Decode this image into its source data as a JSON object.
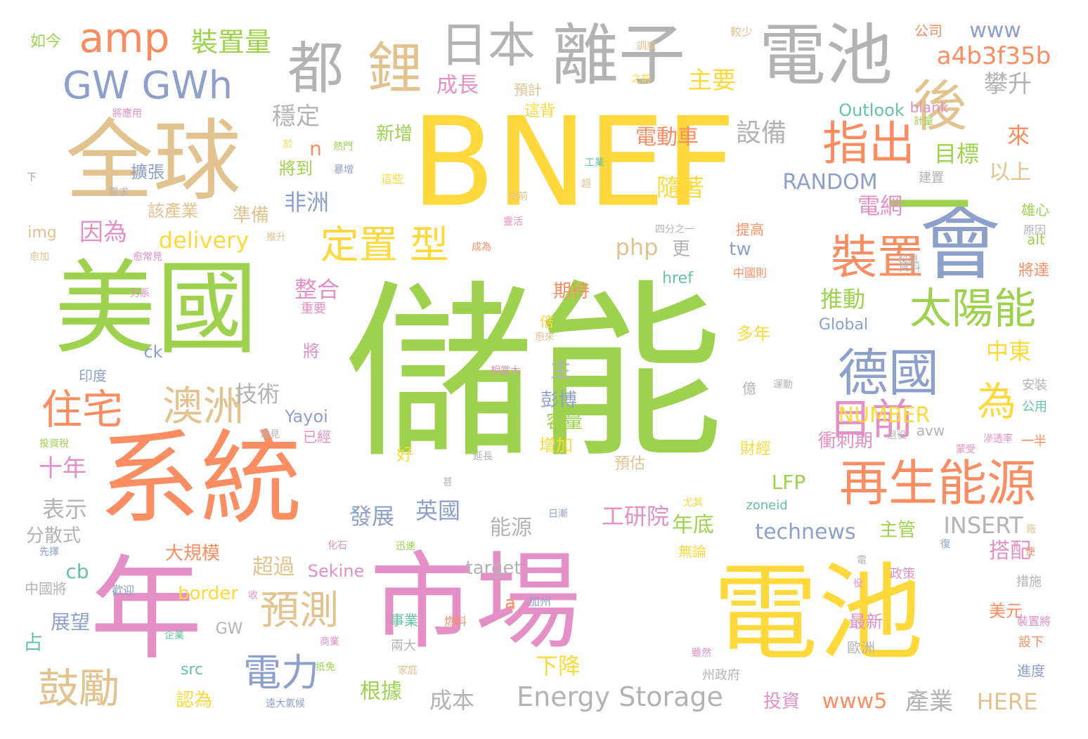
{
  "words": [
    {
      "t": "儲能",
      "c": "#9ED24E"
    },
    {
      "t": "BNEF",
      "c": "#FFD83B"
    },
    {
      "t": "市場",
      "c": "#E48FC5"
    },
    {
      "t": "電池",
      "c": "#FFD83B"
    },
    {
      "t": "系統",
      "c": "#FB8D62"
    },
    {
      "t": "年",
      "c": "#E48FC5"
    },
    {
      "t": "美國",
      "c": "#9ED24E"
    },
    {
      "t": "全球",
      "c": "#E2C28F"
    },
    {
      "t": "會",
      "c": "#8DA0CB"
    },
    {
      "t": "離子",
      "c": "#B3B3B3"
    },
    {
      "t": "電池",
      "c": "#B3B3B3"
    },
    {
      "t": "日本",
      "c": "#B3B3B3"
    },
    {
      "t": "都",
      "c": "#B3B3B3"
    },
    {
      "t": "amp",
      "c": "#FB8D62"
    },
    {
      "t": "GW GWh",
      "c": "#8DA0CB"
    },
    {
      "t": "鋰",
      "c": "#E2C28F"
    },
    {
      "t": "後",
      "c": "#E2C28F"
    },
    {
      "t": "一",
      "c": "#9ED24E"
    },
    {
      "t": "指出",
      "c": "#FB8D62"
    },
    {
      "t": "裝置",
      "c": "#FB8D62"
    },
    {
      "t": "再生能源",
      "c": "#FB8D62"
    },
    {
      "t": "德國",
      "c": "#8DA0CB"
    },
    {
      "t": "太陽能",
      "c": "#9ED24E"
    },
    {
      "t": "為",
      "c": "#FFD83B"
    },
    {
      "t": "目前",
      "c": "#E48FC5"
    },
    {
      "t": "定置 型",
      "c": "#FFD83B"
    },
    {
      "t": "澳洲",
      "c": "#E2C28F"
    },
    {
      "t": "住宅",
      "c": "#FB8D62"
    },
    {
      "t": "鼓勵",
      "c": "#E2C28F"
    },
    {
      "t": "預測",
      "c": "#E2C28F"
    },
    {
      "t": "電力",
      "c": "#8DA0CB"
    },
    {
      "t": "裝置量",
      "c": "#9ED24E"
    },
    {
      "t": "a4b3f35b",
      "c": "#FB8D62"
    },
    {
      "t": "www",
      "c": "#8DA0CB"
    },
    {
      "t": "主要",
      "c": "#FFD83B"
    },
    {
      "t": "攀升",
      "c": "#B3B3B3"
    },
    {
      "t": "穩定",
      "c": "#B3B3B3"
    },
    {
      "t": "成長",
      "c": "#E48FC5"
    },
    {
      "t": "新增",
      "c": "#9ED24E"
    },
    {
      "t": "電動車",
      "c": "#FB8D62"
    },
    {
      "t": "設備",
      "c": "#B3B3B3"
    },
    {
      "t": "目標",
      "c": "#9ED24E"
    },
    {
      "t": "來",
      "c": "#FB8D62"
    },
    {
      "t": "以上",
      "c": "#E2C28F"
    },
    {
      "t": "Outlook",
      "c": "#66C2A5"
    },
    {
      "t": "RANDOM",
      "c": "#8DA0CB"
    },
    {
      "t": "隨著",
      "c": "#FFD83B"
    },
    {
      "t": "電網",
      "c": "#E48FC5"
    },
    {
      "t": "非洲",
      "c": "#8DA0CB"
    },
    {
      "t": "擴張",
      "c": "#8DA0CB"
    },
    {
      "t": "將到",
      "c": "#9ED24E"
    },
    {
      "t": "n",
      "c": "#FB8D62"
    },
    {
      "t": "delivery",
      "c": "#FFD83B"
    },
    {
      "t": "php",
      "c": "#E2C28F"
    },
    {
      "t": "更",
      "c": "#B3B3B3"
    },
    {
      "t": "tw",
      "c": "#8DA0CB"
    },
    {
      "t": "整合",
      "c": "#E48FC5"
    },
    {
      "t": "推動",
      "c": "#9ED24E"
    },
    {
      "t": "中東",
      "c": "#FFD83B"
    },
    {
      "t": "期待",
      "c": "#FB8D62"
    },
    {
      "t": "因為",
      "c": "#E48FC5"
    },
    {
      "t": "準備",
      "c": "#E2C28F"
    },
    {
      "t": "該產業",
      "c": "#E2C28F"
    },
    {
      "t": "技術",
      "c": "#B3B3B3"
    },
    {
      "t": "主",
      "c": "#B3B3B3"
    },
    {
      "t": "彭博",
      "c": "#8DA0CB"
    },
    {
      "t": "容量",
      "c": "#9ED24E"
    },
    {
      "t": "NUMBER",
      "c": "#FFD83B"
    },
    {
      "t": "衝刺期",
      "c": "#E48FC5"
    },
    {
      "t": "Yayoi",
      "c": "#8DA0CB"
    },
    {
      "t": "十年",
      "c": "#E48FC5"
    },
    {
      "t": "表示",
      "c": "#B3B3B3"
    },
    {
      "t": "分散式",
      "c": "#B3B3B3"
    },
    {
      "t": "LFP",
      "c": "#9ED24E"
    },
    {
      "t": "發展",
      "c": "#8DA0CB"
    },
    {
      "t": "英國",
      "c": "#8DA0CB"
    },
    {
      "t": "能源",
      "c": "#B3B3B3"
    },
    {
      "t": "工研院",
      "c": "#E48FC5"
    },
    {
      "t": "年底",
      "c": "#9ED24E"
    },
    {
      "t": "technews",
      "c": "#8DA0CB"
    },
    {
      "t": "INSERT",
      "c": "#B3B3B3"
    },
    {
      "t": "主管",
      "c": "#9ED24E"
    },
    {
      "t": "搭配",
      "c": "#E48FC5"
    },
    {
      "t": "大規模",
      "c": "#FB8D62"
    },
    {
      "t": "超過",
      "c": "#E2C28F"
    },
    {
      "t": "Sekine",
      "c": "#E48FC5"
    },
    {
      "t": "cb",
      "c": "#66C2A5"
    },
    {
      "t": "border",
      "c": "#FFD83B"
    },
    {
      "t": "target",
      "c": "#B3B3B3"
    },
    {
      "t": "a",
      "c": "#FB8D62"
    },
    {
      "t": "最新",
      "c": "#E48FC5"
    },
    {
      "t": "美元",
      "c": "#FB8D62"
    },
    {
      "t": "展望",
      "c": "#8DA0CB"
    },
    {
      "t": "占",
      "c": "#66C2A5"
    },
    {
      "t": "下降",
      "c": "#FFD83B"
    },
    {
      "t": "根據",
      "c": "#9ED24E"
    },
    {
      "t": "成本",
      "c": "#B3B3B3"
    },
    {
      "t": "Energy Storage",
      "c": "#B3B3B3"
    },
    {
      "t": "www5",
      "c": "#FB8D62"
    },
    {
      "t": "產業",
      "c": "#B3B3B3"
    },
    {
      "t": "HERE",
      "c": "#E2C28F"
    },
    {
      "t": "認為",
      "c": "#FFD83B"
    },
    {
      "t": "投資",
      "c": "#E48FC5"
    },
    {
      "t": "src",
      "c": "#66C2A5"
    },
    {
      "t": "GW",
      "c": "#B3B3B3"
    },
    {
      "t": "如今",
      "c": "#9ED24E"
    },
    {
      "t": "公司",
      "c": "#FB8D62"
    },
    {
      "t": "較少",
      "c": "#E2C28F"
    },
    {
      "t": "調度",
      "c": "#E2C28F"
    },
    {
      "t": "將應用",
      "c": "#E48FC5"
    },
    {
      "t": "熱門",
      "c": "#9ED24E"
    },
    {
      "t": "於",
      "c": "#FFD83B"
    },
    {
      "t": "下",
      "c": "#8DA0CB"
    },
    {
      "t": "需求",
      "c": "#B3B3B3"
    },
    {
      "t": "暴增",
      "c": "#8DA0CB"
    },
    {
      "t": "這些",
      "c": "#FFD83B"
    },
    {
      "t": "img",
      "c": "#E2C28F"
    },
    {
      "t": "推升",
      "c": "#E2C28F"
    },
    {
      "t": "愈加",
      "c": "#E2C28F"
    },
    {
      "t": "愈常見",
      "c": "#E48FC5"
    },
    {
      "t": "力系",
      "c": "#E48FC5"
    },
    {
      "t": "重要",
      "c": "#E48FC5"
    },
    {
      "t": "將",
      "c": "#E48FC5"
    },
    {
      "t": "倍",
      "c": "#FFD83B"
    },
    {
      "t": "ck",
      "c": "#8DA0CB"
    },
    {
      "t": "印度",
      "c": "#8DA0CB"
    },
    {
      "t": "常見",
      "c": "#B3B3B3"
    },
    {
      "t": "已經",
      "c": "#E48FC5"
    },
    {
      "t": "好",
      "c": "#FFD83B"
    },
    {
      "t": "增加",
      "c": "#FFD83B"
    },
    {
      "t": "投資稅",
      "c": "#9ED24E"
    },
    {
      "t": "預計",
      "c": "#E2C28F"
    },
    {
      "t": "這背",
      "c": "#FFD83B"
    },
    {
      "t": "之前",
      "c": "#FFD83B"
    },
    {
      "t": "blank",
      "c": "#E48FC5"
    },
    {
      "t": "計量",
      "c": "#9ED24E"
    },
    {
      "t": "工業",
      "c": "#66C2A5"
    },
    {
      "t": "超",
      "c": "#E2C28F"
    },
    {
      "t": "建置",
      "c": "#B3B3B3"
    },
    {
      "t": "雄心",
      "c": "#9ED24E"
    },
    {
      "t": "原因",
      "c": "#B3B3B3"
    },
    {
      "t": "提前",
      "c": "#E2C28F"
    },
    {
      "t": "靈活",
      "c": "#E48FC5"
    },
    {
      "t": "四分之一",
      "c": "#B3B3B3"
    },
    {
      "t": "提高",
      "c": "#FB8D62"
    },
    {
      "t": "alt",
      "c": "#9ED24E"
    },
    {
      "t": "成為",
      "c": "#FB8D62"
    },
    {
      "t": "料想",
      "c": "#B3B3B3"
    },
    {
      "t": "資料",
      "c": "#B3B3B3"
    },
    {
      "t": "中國則",
      "c": "#FB8D62"
    },
    {
      "t": "href",
      "c": "#66C2A5"
    },
    {
      "t": "多年",
      "c": "#FFD83B"
    },
    {
      "t": "將達",
      "c": "#FB8D62"
    },
    {
      "t": "Global",
      "c": "#8DA0CB"
    },
    {
      "t": "億",
      "c": "#B3B3B3"
    },
    {
      "t": "愈來",
      "c": "#E2C28F"
    },
    {
      "t": "相當大",
      "c": "#E48FC5"
    },
    {
      "t": "運動",
      "c": "#B3B3B3"
    },
    {
      "t": "安裝",
      "c": "#B3B3B3"
    },
    {
      "t": "公用",
      "c": "#66C2A5"
    },
    {
      "t": "avw",
      "c": "#B3B3B3"
    },
    {
      "t": "一半",
      "c": "#FB8D62"
    },
    {
      "t": "滲透率",
      "c": "#E48FC5"
    },
    {
      "t": "蒙受",
      "c": "#E48FC5"
    },
    {
      "t": "退役",
      "c": "#B3B3B3"
    },
    {
      "t": "延長",
      "c": "#B3B3B3"
    },
    {
      "t": "財經",
      "c": "#FFD83B"
    },
    {
      "t": "預估",
      "c": "#E2C28F"
    },
    {
      "t": "甚",
      "c": "#B3B3B3"
    },
    {
      "t": "尤其",
      "c": "#FFD83B"
    },
    {
      "t": "日漸",
      "c": "#8DA0CB"
    },
    {
      "t": "zoneid",
      "c": "#66C2A5"
    },
    {
      "t": "廠",
      "c": "#E2C28F"
    },
    {
      "t": "無論",
      "c": "#FFD83B"
    },
    {
      "t": "先擇",
      "c": "#8DA0CB"
    },
    {
      "t": "化石",
      "c": "#E48FC5"
    },
    {
      "t": "迅速",
      "c": "#9ED24E"
    },
    {
      "t": "復",
      "c": "#8DA0CB"
    },
    {
      "t": "使",
      "c": "#FB8D62"
    },
    {
      "t": "電",
      "c": "#B3B3B3"
    },
    {
      "t": "中國將",
      "c": "#B3B3B3"
    },
    {
      "t": "歡迎",
      "c": "#8DA0CB"
    },
    {
      "t": "收",
      "c": "#E48FC5"
    },
    {
      "t": "加州",
      "c": "#8DA0CB"
    },
    {
      "t": "役",
      "c": "#E48FC5"
    },
    {
      "t": "政策",
      "c": "#E48FC5"
    },
    {
      "t": "措施",
      "c": "#B3B3B3"
    },
    {
      "t": "事業",
      "c": "#66C2A5"
    },
    {
      "t": "燃料",
      "c": "#FB8D62"
    },
    {
      "t": "裝置將",
      "c": "#E48FC5"
    },
    {
      "t": "企業",
      "c": "#66C2A5"
    },
    {
      "t": "商業",
      "c": "#E48FC5"
    },
    {
      "t": "兩大",
      "c": "#B3B3B3"
    },
    {
      "t": "設下",
      "c": "#FB8D62"
    },
    {
      "t": "雖然",
      "c": "#E48FC5"
    },
    {
      "t": "歐洲",
      "c": "#B3B3B3"
    },
    {
      "t": "抵免",
      "c": "#9ED24E"
    },
    {
      "t": "家庭",
      "c": "#E2C28F"
    },
    {
      "t": "州政府",
      "c": "#B3B3B3"
    },
    {
      "t": "進度",
      "c": "#8DA0CB"
    },
    {
      "t": "遠大氣候",
      "c": "#8DA0CB"
    }
  ]
}
